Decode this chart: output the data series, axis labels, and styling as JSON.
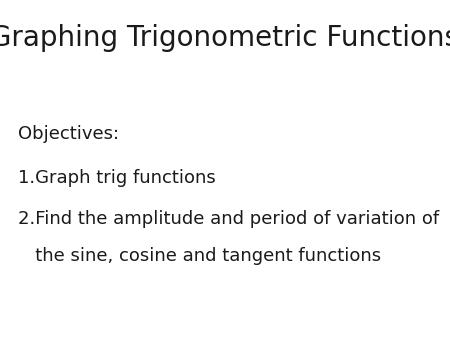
{
  "title": "Graphing Trigonometric Functions",
  "title_fontsize": 20,
  "title_color": "#1a1a1a",
  "background_color": "#ffffff",
  "text_color": "#1a1a1a",
  "body_fontsize": 13,
  "lines": [
    {
      "text": "Objectives:",
      "indent": 0
    },
    {
      "text": "1.Graph trig functions",
      "indent": 0
    },
    {
      "text": "2.Find the amplitude and period of variation of",
      "indent": 0
    },
    {
      "text": "   the sine, cosine and tangent functions",
      "indent": 1
    }
  ]
}
